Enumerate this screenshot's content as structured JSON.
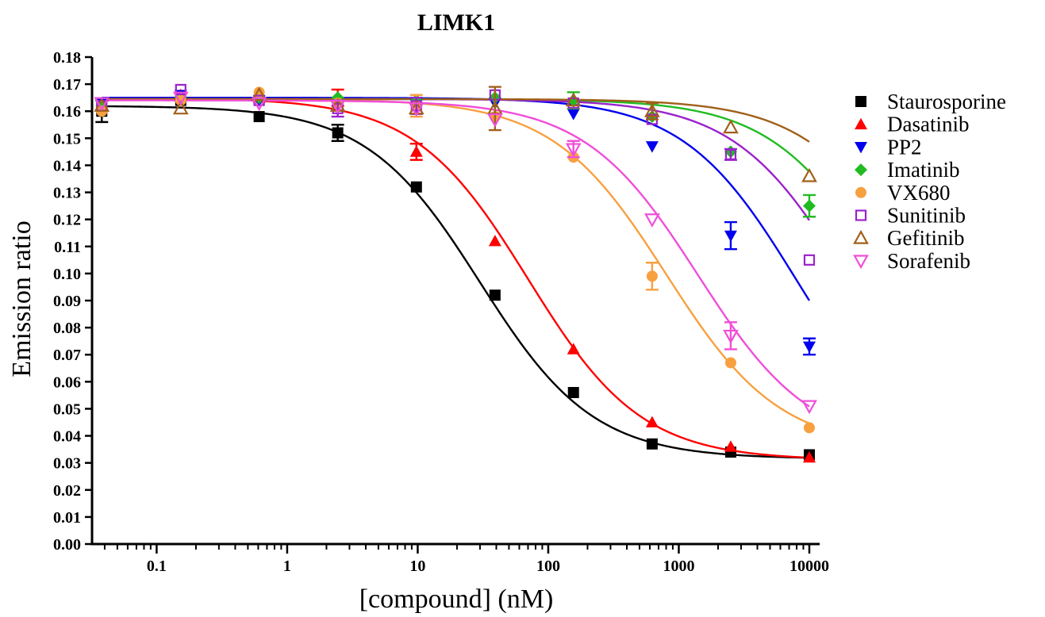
{
  "chart_data": {
    "type": "scatter",
    "title": "LIMK1",
    "xlabel": "[compound] (nM)",
    "ylabel": "Emission ratio",
    "x_scale": "log",
    "xlim": [
      0.032,
      12000
    ],
    "ylim": [
      0.0,
      0.18
    ],
    "x_ticks": [
      0.1,
      1,
      10,
      100,
      1000,
      10000
    ],
    "x_tick_labels": [
      "0.1",
      "1",
      "10",
      "100",
      "1000",
      "10000"
    ],
    "y_ticks": [
      0.0,
      0.01,
      0.02,
      0.03,
      0.04,
      0.05,
      0.06,
      0.07,
      0.08,
      0.09,
      0.1,
      0.11,
      0.12,
      0.13,
      0.14,
      0.15,
      0.16,
      0.17,
      0.18
    ],
    "y_tick_labels": [
      "0.00",
      "0.01",
      "0.02",
      "0.03",
      "0.04",
      "0.05",
      "0.06",
      "0.07",
      "0.08",
      "0.09",
      "0.10",
      "0.11",
      "0.12",
      "0.13",
      "0.14",
      "0.15",
      "0.16",
      "0.17",
      "0.18"
    ],
    "grid": false,
    "legend_position": "right",
    "x": [
      0.038,
      0.153,
      0.61,
      2.44,
      9.77,
      39.1,
      156,
      625,
      2500,
      10000
    ],
    "series": [
      {
        "name": "Staurosporine",
        "color": "#000000",
        "marker": "square-filled",
        "values": [
          0.16,
          0.164,
          0.158,
          0.152,
          0.132,
          0.092,
          0.056,
          0.037,
          0.034,
          0.033
        ],
        "errors": [
          0.004,
          0,
          0,
          0.003,
          0,
          0,
          0,
          0,
          0,
          0
        ],
        "fit": {
          "top": 0.162,
          "bottom": 0.0315,
          "ec50": 30,
          "hill": 1.0
        }
      },
      {
        "name": "Dasatinib",
        "color": "#ff0000",
        "marker": "triangle-up-filled",
        "values": [
          0.162,
          0.166,
          0.165,
          0.165,
          0.145,
          0.112,
          0.072,
          0.045,
          0.036,
          0.032
        ],
        "errors": [
          0,
          0,
          0,
          0.003,
          0.003,
          0,
          0,
          0,
          0,
          0
        ],
        "fit": {
          "top": 0.165,
          "bottom": 0.031,
          "ec50": 70,
          "hill": 1.0
        }
      },
      {
        "name": "PP2",
        "color": "#0000ee",
        "marker": "triangle-down-filled",
        "values": [
          0.163,
          0.166,
          0.164,
          0.162,
          0.163,
          0.163,
          0.159,
          0.147,
          0.114,
          0.073
        ],
        "errors": [
          0,
          0,
          0,
          0,
          0,
          0,
          0,
          0,
          0.005,
          0.003
        ],
        "fit": {
          "top": 0.165,
          "bottom": 0.03,
          "ec50": 8000,
          "hill": 1.0
        }
      },
      {
        "name": "Imatinib",
        "color": "#22bb22",
        "marker": "diamond-filled",
        "values": [
          0.162,
          0.165,
          0.165,
          0.165,
          0.164,
          0.165,
          0.164,
          0.158,
          0.145,
          0.125
        ],
        "errors": [
          0,
          0,
          0,
          0,
          0,
          0,
          0.003,
          0,
          0,
          0.004
        ],
        "fit": {
          "top": 0.1645,
          "bottom": 0.03,
          "ec50": 40000,
          "hill": 1.0
        }
      },
      {
        "name": "VX680",
        "color": "#f7a040",
        "marker": "circle-filled",
        "values": [
          0.16,
          0.164,
          0.167,
          0.163,
          0.162,
          0.158,
          0.143,
          0.099,
          0.067,
          0.043
        ],
        "errors": [
          0,
          0,
          0,
          0,
          0.004,
          0,
          0,
          0.005,
          0,
          0
        ],
        "fit": {
          "top": 0.1645,
          "bottom": 0.035,
          "ec50": 800,
          "hill": 1.0
        }
      },
      {
        "name": "Sunitinib",
        "color": "#9b22cc",
        "marker": "square-open",
        "values": [
          0.162,
          0.168,
          0.164,
          0.161,
          0.162,
          0.166,
          0.163,
          0.157,
          0.144,
          0.105
        ],
        "errors": [
          0,
          0,
          0,
          0.003,
          0.003,
          0,
          0,
          0,
          0.002,
          0
        ],
        "fit": {
          "top": 0.1645,
          "bottom": 0.03,
          "ec50": 20000,
          "hill": 1.0
        }
      },
      {
        "name": "Gefitinib",
        "color": "#a0601a",
        "marker": "triangle-up-open",
        "values": [
          0.162,
          0.161,
          0.166,
          0.162,
          0.161,
          0.161,
          0.164,
          0.16,
          0.154,
          0.136
        ],
        "errors": [
          0,
          0,
          0,
          0,
          0,
          0.008,
          0,
          0.003,
          0,
          0
        ],
        "fit": {
          "top": 0.1645,
          "bottom": 0.03,
          "ec50": 75000,
          "hill": 1.0
        }
      },
      {
        "name": "Sorafenib",
        "color": "#f04ed8",
        "marker": "triangle-down-open",
        "values": [
          0.163,
          0.165,
          0.163,
          0.162,
          0.161,
          0.157,
          0.146,
          0.12,
          0.077,
          0.051
        ],
        "errors": [
          0,
          0,
          0,
          0,
          0,
          0,
          0.003,
          0,
          0.005,
          0
        ],
        "fit": {
          "top": 0.164,
          "bottom": 0.035,
          "ec50": 1400,
          "hill": 1.0
        }
      }
    ]
  }
}
